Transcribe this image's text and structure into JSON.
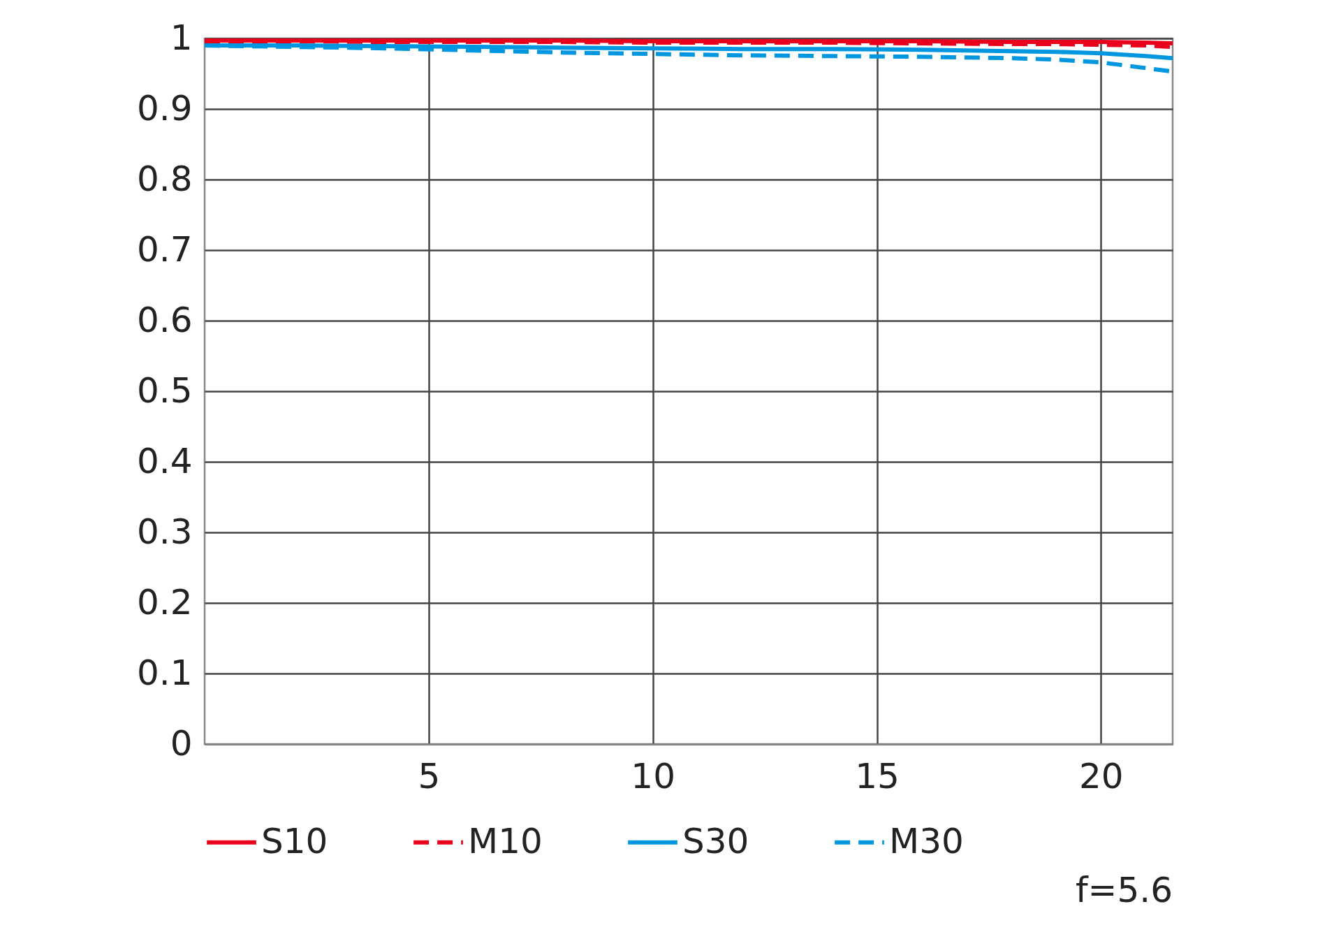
{
  "chart_data": {
    "type": "line",
    "x": [
      0,
      2,
      4,
      6,
      8,
      10,
      12,
      14,
      16,
      18,
      19,
      20,
      21,
      21.6
    ],
    "series": [
      {
        "name": "S10",
        "color": "#e8001c",
        "line_style": "solid",
        "values": [
          0.997,
          0.997,
          0.997,
          0.997,
          0.997,
          0.996,
          0.996,
          0.996,
          0.996,
          0.995,
          0.995,
          0.995,
          0.994,
          0.993
        ]
      },
      {
        "name": "M10",
        "color": "#e8001c",
        "line_style": "dashed",
        "values": [
          0.996,
          0.996,
          0.995,
          0.995,
          0.995,
          0.994,
          0.994,
          0.994,
          0.993,
          0.992,
          0.992,
          0.991,
          0.99,
          0.988
        ]
      },
      {
        "name": "S30",
        "color": "#0096e0",
        "line_style": "solid",
        "values": [
          0.99,
          0.99,
          0.989,
          0.988,
          0.987,
          0.986,
          0.985,
          0.985,
          0.984,
          0.982,
          0.981,
          0.979,
          0.975,
          0.972
        ]
      },
      {
        "name": "M30",
        "color": "#0096e0",
        "line_style": "dashed",
        "values": [
          0.99,
          0.988,
          0.986,
          0.983,
          0.98,
          0.978,
          0.976,
          0.975,
          0.974,
          0.972,
          0.97,
          0.966,
          0.958,
          0.953
        ]
      }
    ],
    "xlim": [
      0,
      21.6
    ],
    "xticks": [
      5,
      10,
      15,
      20
    ],
    "ylim": [
      0,
      1
    ],
    "yticks": [
      0,
      0.1,
      0.2,
      0.3,
      0.4,
      0.5,
      0.6,
      0.7,
      0.8,
      0.9,
      1
    ],
    "grid": true,
    "legend": "bottom",
    "annotations": [
      "f=5.6"
    ]
  }
}
